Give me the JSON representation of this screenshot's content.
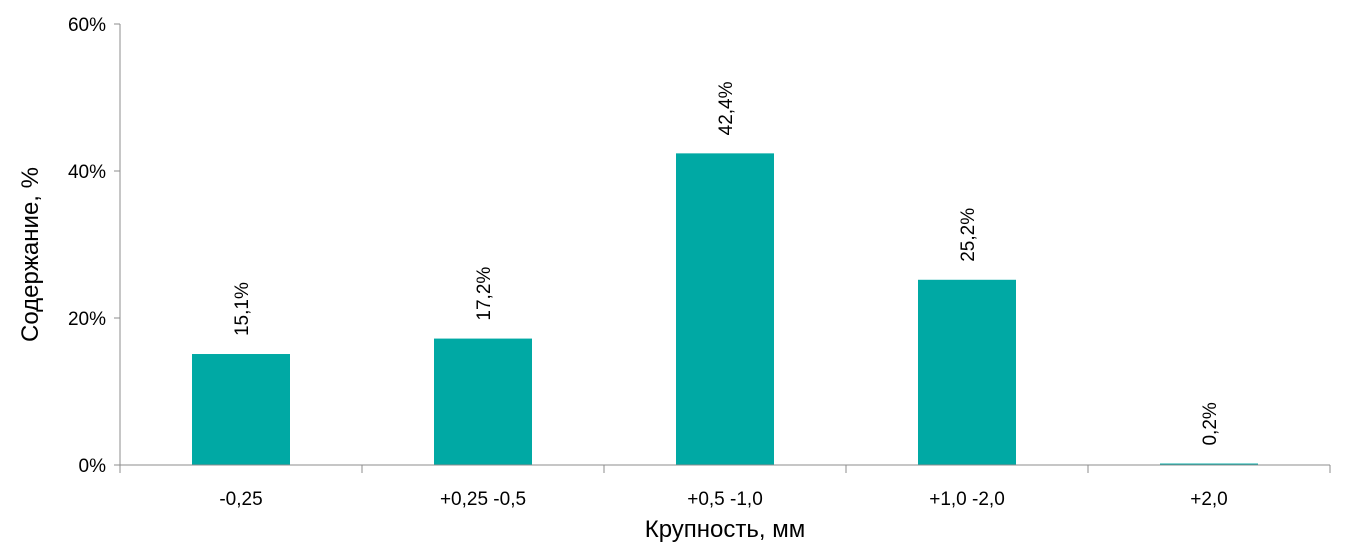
{
  "chart_data": {
    "type": "bar",
    "categories": [
      "-0,25",
      "+0,25 -0,5",
      "+0,5 -1,0",
      "+1,0 -2,0",
      "+2,0"
    ],
    "values": [
      15.1,
      17.2,
      42.4,
      25.2,
      0.2
    ],
    "data_labels": [
      "15,1%",
      "17,2%",
      "42,4%",
      "25,2%",
      "0,2%"
    ],
    "xlabel": "Крупность, мм",
    "ylabel": "Содержание, %",
    "ylim": [
      0,
      60
    ],
    "yticks": [
      0,
      20,
      40,
      60
    ],
    "ytick_labels": [
      "0%",
      "20%",
      "40%",
      "60%"
    ],
    "bar_color": "#00A9A4",
    "grid": false,
    "legend": "none"
  }
}
